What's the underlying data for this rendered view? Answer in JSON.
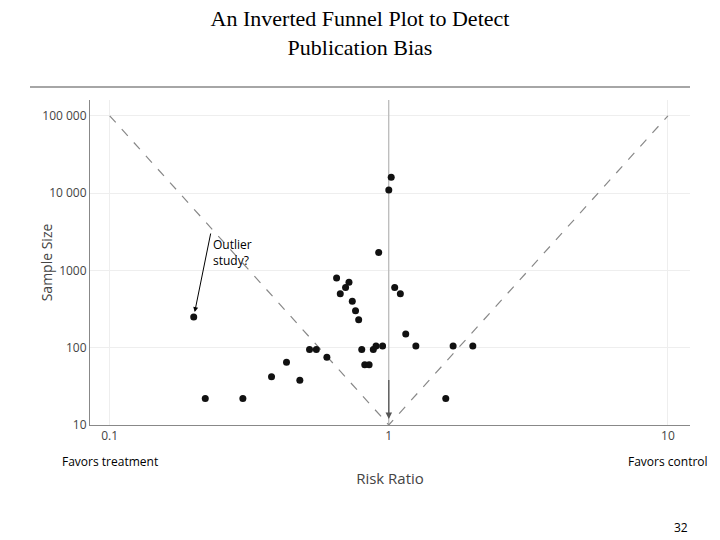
{
  "chart_data": {
    "type": "scatter",
    "title": "An Inverted Funnel Plot to Detect\nPublication Bias",
    "xlabel": "Risk Ratio",
    "ylabel": "Sample Size",
    "log": true,
    "grid": true,
    "xlim": [
      0.085,
      12
    ],
    "ylim": [
      10,
      160000
    ],
    "xticks": [
      0.1,
      1,
      10
    ],
    "yticks": [
      10,
      100,
      1000,
      {
        "value": 10000,
        "label": "10 000"
      },
      {
        "value": 100000,
        "label": "100 000"
      }
    ],
    "series": [
      {
        "type": "scatter",
        "marker": "circle",
        "color": "#111111",
        "x": [
          0.2,
          0.22,
          0.3,
          0.38,
          0.43,
          0.48,
          0.52,
          0.55,
          0.6,
          0.65,
          0.67,
          0.7,
          0.72,
          0.74,
          0.76,
          0.78,
          0.8,
          0.82,
          0.85,
          0.88,
          0.9,
          0.92,
          0.95,
          1.0,
          1.02,
          1.05,
          1.1,
          1.15,
          1.25,
          1.6,
          1.7,
          2.0
        ],
        "values": [
          250,
          22,
          22,
          42,
          65,
          38,
          95,
          95,
          75,
          800,
          500,
          600,
          700,
          400,
          300,
          230,
          95,
          60,
          60,
          95,
          105,
          1700,
          105,
          11000,
          16000,
          600,
          500,
          150,
          105,
          22,
          105,
          105
        ]
      },
      {
        "type": "line",
        "line_style": "dashed",
        "color": "#888888",
        "x": [
          0.1,
          1.0,
          10.0
        ],
        "values": [
          100000,
          10,
          100000
        ]
      }
    ],
    "vlines": [
      {
        "x": 1.0,
        "color": "#aaaaaa"
      }
    ],
    "arrows": [
      {
        "x": 1.0,
        "y": 12,
        "from_x": 1.0,
        "from_y": 40
      }
    ],
    "annotations": [
      {
        "text": "Outlier\nstudy?",
        "x": 0.23,
        "y": 3000,
        "arrow_x": 0.2,
        "arrow_y": 250
      }
    ],
    "x_notes": [
      {
        "text": "Favors treatment",
        "x": 0.1
      },
      {
        "text": "Favors control",
        "x": 10
      }
    ],
    "footer": "32"
  }
}
